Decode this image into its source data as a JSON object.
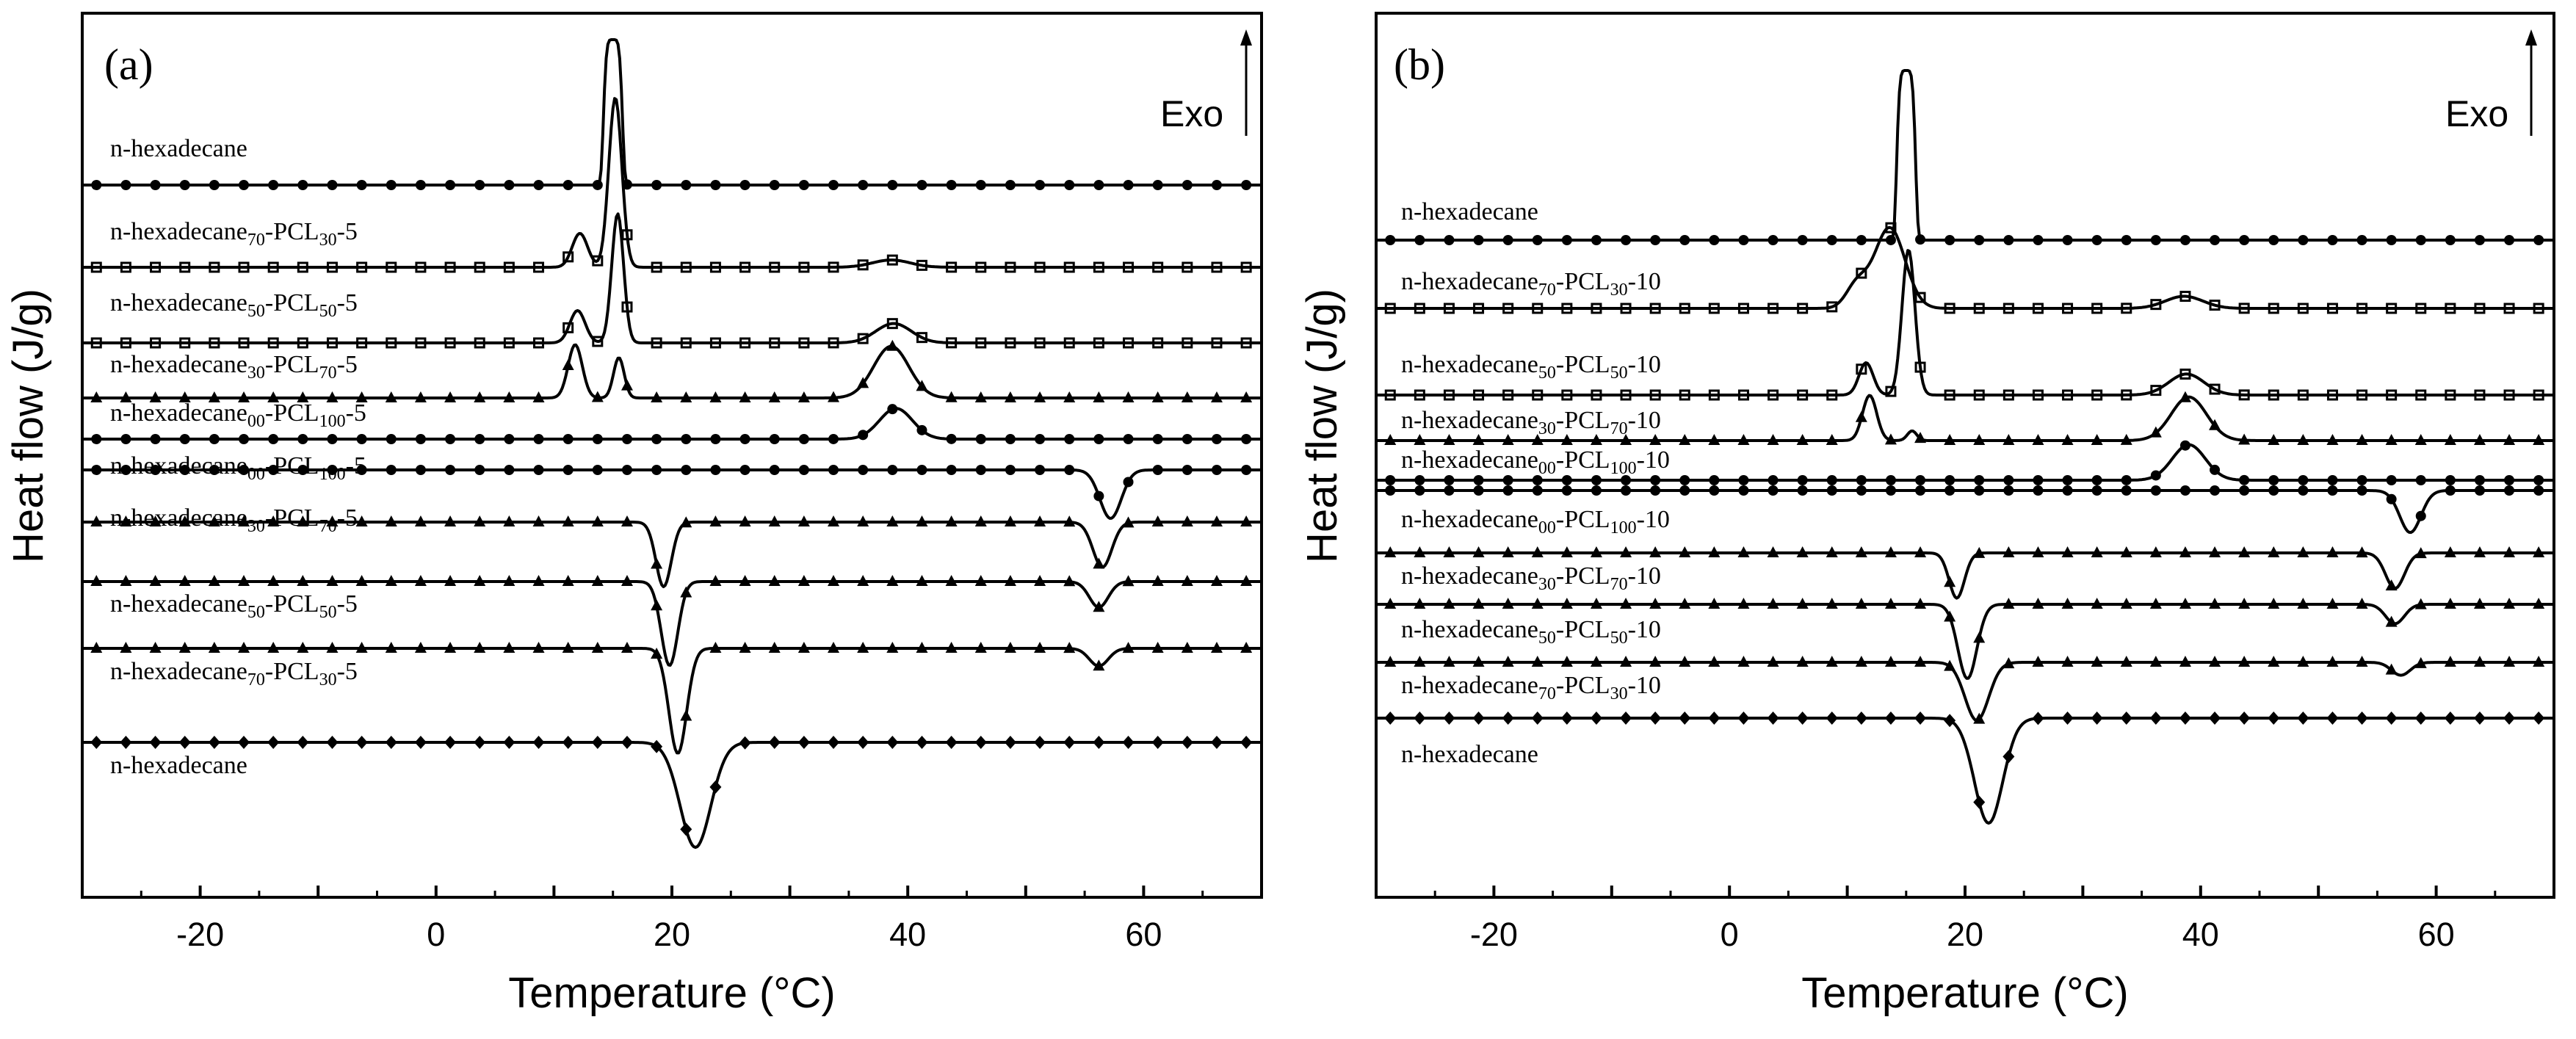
{
  "chart_data": [
    {
      "panel": "(a)",
      "type": "line",
      "xlabel": "Temperature (°C)",
      "ylabel": "Heat flow (J/g)",
      "xlim": [
        -30,
        70
      ],
      "xticks": [
        -20,
        0,
        20,
        40,
        60
      ],
      "exo_label": "Exo",
      "series": [
        {
          "name": "n-hexadecane",
          "mode": "cooling",
          "peaks": [
            {
              "t": 15,
              "h": 9.0,
              "w": 0.85,
              "flat": true
            }
          ]
        },
        {
          "name": "n-hexadecane70-PCL30-5",
          "mode": "cooling",
          "peaks": [
            {
              "t": 15.2,
              "h": 10.5,
              "w": 0.55
            },
            {
              "t": 12.2,
              "h": 2.1,
              "w": 0.65
            },
            {
              "t": 38.6,
              "h": 0.45,
              "w": 1.6
            }
          ]
        },
        {
          "name": "n-hexadecane50-PCL50-5",
          "mode": "cooling",
          "peaks": [
            {
              "t": 15.4,
              "h": 8.0,
              "w": 0.5
            },
            {
              "t": 12.0,
              "h": 2.0,
              "w": 0.65
            },
            {
              "t": 38.8,
              "h": 1.2,
              "w": 1.5
            }
          ]
        },
        {
          "name": "n-hexadecane30-PCL70-5",
          "mode": "cooling",
          "peaks": [
            {
              "t": 11.8,
              "h": 3.3,
              "w": 0.6
            },
            {
              "t": 15.5,
              "h": 2.5,
              "w": 0.45
            },
            {
              "t": 38.6,
              "h": 3.2,
              "w": 1.5
            }
          ]
        },
        {
          "name": "n-hexadecane00-PCL100-5",
          "mode": "cooling",
          "peaks": [
            {
              "t": 39,
              "h": 1.9,
              "w": 1.4
            }
          ]
        },
        {
          "name": "n-hexadecane00-PCL100-5",
          "mode": "heating",
          "peaks": [
            {
              "t": 57.2,
              "h": -3.0,
              "w": 0.9
            }
          ]
        },
        {
          "name": "n-hexadecane30-PCL70-5",
          "mode": "heating",
          "peaks": [
            {
              "t": 19.3,
              "h": -4.0,
              "w": 0.65
            },
            {
              "t": 56.5,
              "h": -2.8,
              "w": 0.8
            }
          ]
        },
        {
          "name": "n-hexadecane50-PCL50-5",
          "mode": "heating",
          "peaks": [
            {
              "t": 19.8,
              "h": -5.2,
              "w": 0.7
            },
            {
              "t": 56.2,
              "h": -1.6,
              "w": 0.8
            }
          ]
        },
        {
          "name": "n-hexadecane70-PCL30-5",
          "mode": "heating",
          "peaks": [
            {
              "t": 20.5,
              "h": -6.5,
              "w": 0.75
            },
            {
              "t": 56.2,
              "h": -1.1,
              "w": 0.8
            }
          ]
        },
        {
          "name": "n-hexadecane",
          "mode": "heating",
          "peaks": [
            {
              "t": 22.0,
              "h": -6.5,
              "w": 1.3
            }
          ]
        }
      ]
    },
    {
      "panel": "(b)",
      "type": "line",
      "xlabel": "Temperature (°C)",
      "ylabel": "Heat flow (J/g)",
      "xlim": [
        -30,
        70
      ],
      "xticks": [
        -20,
        0,
        20,
        40,
        60
      ],
      "exo_label": "Exo",
      "series": [
        {
          "name": "n-hexadecane",
          "mode": "cooling",
          "peaks": [
            {
              "t": 15,
              "h": 10.5,
              "w": 0.85,
              "flat": true
            }
          ]
        },
        {
          "name": "n-hexadecane70-PCL30-10",
          "mode": "cooling",
          "peaks": [
            {
              "t": 13.6,
              "h": 5.0,
              "w": 1.3
            },
            {
              "t": 10.8,
              "h": 1.4,
              "w": 0.9
            },
            {
              "t": 38.6,
              "h": 0.75,
              "w": 1.6
            }
          ]
        },
        {
          "name": "n-hexadecane50-PCL50-10",
          "mode": "cooling",
          "peaks": [
            {
              "t": 15.2,
              "h": 9.0,
              "w": 0.55
            },
            {
              "t": 11.6,
              "h": 2.0,
              "w": 0.6
            },
            {
              "t": 38.8,
              "h": 1.3,
              "w": 1.5
            }
          ]
        },
        {
          "name": "n-hexadecane30-PCL70-10",
          "mode": "cooling",
          "peaks": [
            {
              "t": 11.9,
              "h": 2.8,
              "w": 0.6
            },
            {
              "t": 15.5,
              "h": 0.6,
              "w": 0.4
            },
            {
              "t": 39,
              "h": 2.7,
              "w": 1.5
            }
          ]
        },
        {
          "name": "n-hexadecane00-PCL100-10",
          "mode": "cooling",
          "peaks": [
            {
              "t": 39,
              "h": 2.2,
              "w": 1.4
            }
          ]
        },
        {
          "name": "n-hexadecane00-PCL100-10",
          "mode": "heating",
          "peaks": [
            {
              "t": 57.8,
              "h": -2.6,
              "w": 0.9
            }
          ]
        },
        {
          "name": "n-hexadecane30-PCL70-10",
          "mode": "heating",
          "peaks": [
            {
              "t": 19.3,
              "h": -2.8,
              "w": 0.65
            },
            {
              "t": 56.5,
              "h": -2.2,
              "w": 0.8
            }
          ]
        },
        {
          "name": "n-hexadecane50-PCL50-10",
          "mode": "heating",
          "peaks": [
            {
              "t": 20.2,
              "h": -4.6,
              "w": 0.8
            },
            {
              "t": 56.5,
              "h": -1.2,
              "w": 0.8
            }
          ]
        },
        {
          "name": "n-hexadecane70-PCL30-10",
          "mode": "heating",
          "peaks": [
            {
              "t": 21.0,
              "h": -3.6,
              "w": 1.0
            },
            {
              "t": 57.0,
              "h": -0.8,
              "w": 0.8
            }
          ]
        },
        {
          "name": "n-hexadecane",
          "mode": "heating",
          "peaks": [
            {
              "t": 22.0,
              "h": -6.5,
              "w": 1.2
            }
          ]
        }
      ]
    }
  ],
  "colors": {
    "line": "#000000",
    "background": "#ffffff"
  }
}
